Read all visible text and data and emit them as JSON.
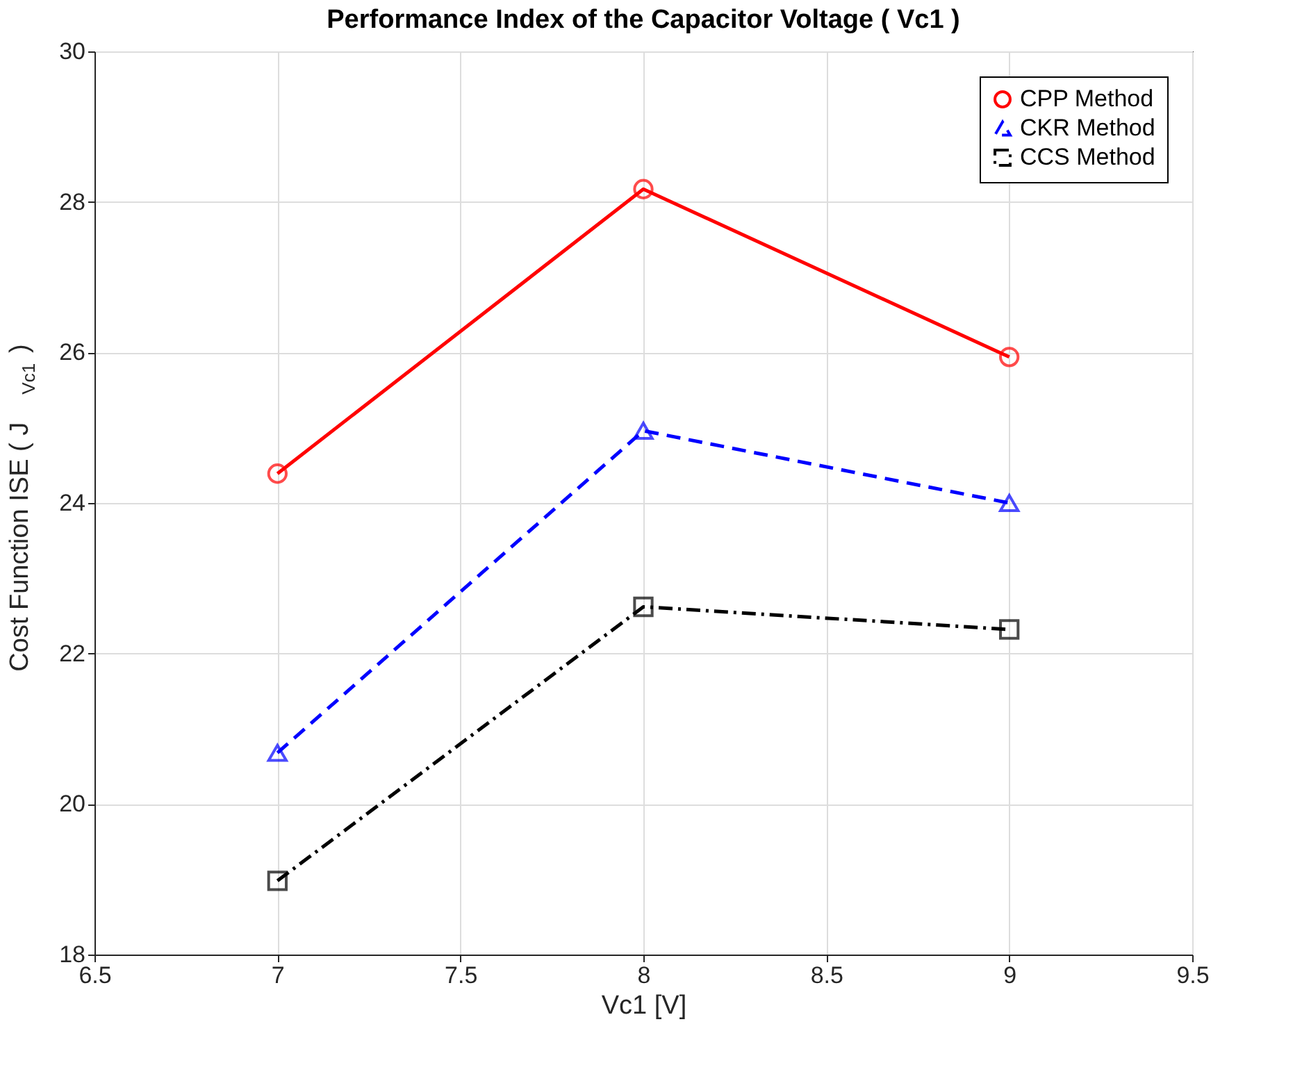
{
  "chart_data": {
    "type": "line",
    "title": "Performance Index of the Capacitor Voltage ( Vc1 )",
    "xlabel": "Vc1 [V]",
    "ylabel": "Cost Function ISE ( J$_{Vc1}$ )",
    "x": [
      7,
      8,
      9
    ],
    "series": [
      {
        "name": "CPP Method",
        "color": "#ff0000",
        "values": [
          24.39,
          28.17,
          25.94
        ],
        "marker": "circle",
        "line_style": "solid"
      },
      {
        "name": "CKR Method",
        "color": "#0000ff",
        "values": [
          20.68,
          24.96,
          24.0
        ],
        "marker": "triangle",
        "line_style": "dashed"
      },
      {
        "name": "CCS Method",
        "color": "#000000",
        "values": [
          18.98,
          22.62,
          22.32
        ],
        "marker": "square",
        "line_style": "dashdot"
      }
    ],
    "xlim": [
      6.5,
      9.5
    ],
    "xticks": [
      6.5,
      7,
      7.5,
      8,
      8.5,
      9,
      9.5
    ],
    "ylim": [
      18,
      30
    ],
    "yticks": [
      18,
      20,
      22,
      24,
      26,
      28,
      30
    ],
    "grid": true,
    "legend": "top right"
  }
}
